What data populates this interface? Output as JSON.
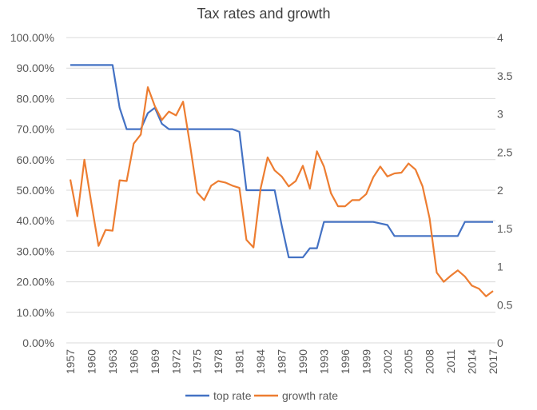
{
  "chart_data": {
    "type": "line",
    "title": "Tax rates and growth",
    "x": [
      1957,
      1958,
      1959,
      1960,
      1961,
      1962,
      1963,
      1964,
      1965,
      1966,
      1967,
      1968,
      1969,
      1970,
      1971,
      1972,
      1973,
      1974,
      1975,
      1976,
      1977,
      1978,
      1979,
      1980,
      1981,
      1982,
      1983,
      1984,
      1985,
      1986,
      1987,
      1988,
      1989,
      1990,
      1991,
      1992,
      1993,
      1994,
      1995,
      1996,
      1997,
      1998,
      1999,
      2000,
      2001,
      2002,
      2003,
      2004,
      2005,
      2006,
      2007,
      2008,
      2009,
      2010,
      2011,
      2012,
      2013,
      2014,
      2015,
      2016,
      2017
    ],
    "x_tick_labels": [
      "1957",
      "1960",
      "1963",
      "1966",
      "1969",
      "1972",
      "1975",
      "1978",
      "1981",
      "1984",
      "1987",
      "1990",
      "1993",
      "1996",
      "1999",
      "2002",
      "2005",
      "2008",
      "2011",
      "2014",
      "2017"
    ],
    "y_left": {
      "lim": [
        0,
        1
      ],
      "tick_labels": [
        "0.00%",
        "10.00%",
        "20.00%",
        "30.00%",
        "40.00%",
        "50.00%",
        "60.00%",
        "70.00%",
        "80.00%",
        "90.00%",
        "100.00%"
      ]
    },
    "y_right": {
      "lim": [
        0,
        4
      ],
      "tick_labels": [
        "0",
        "0.5",
        "1",
        "1.5",
        "2",
        "2.5",
        "3",
        "3.5",
        "4"
      ]
    },
    "grid": true,
    "legend": "bottom",
    "series": [
      {
        "name": "top rate",
        "axis": "left",
        "color": "#4472C4",
        "values": [
          0.91,
          0.91,
          0.91,
          0.91,
          0.91,
          0.91,
          0.91,
          0.77,
          0.7,
          0.7,
          0.7,
          0.7525,
          0.77,
          0.7175,
          0.7,
          0.7,
          0.7,
          0.7,
          0.7,
          0.7,
          0.7,
          0.7,
          0.7,
          0.7,
          0.6913,
          0.5,
          0.5,
          0.5,
          0.5,
          0.5,
          0.385,
          0.28,
          0.28,
          0.28,
          0.31,
          0.31,
          0.396,
          0.396,
          0.396,
          0.396,
          0.396,
          0.396,
          0.396,
          0.396,
          0.391,
          0.386,
          0.35,
          0.35,
          0.35,
          0.35,
          0.35,
          0.35,
          0.35,
          0.35,
          0.35,
          0.35,
          0.396,
          0.396,
          0.396,
          0.396,
          0.396
        ]
      },
      {
        "name": "growth rate",
        "axis": "right",
        "color": "#ED7D31",
        "values": [
          2.14,
          1.66,
          2.4,
          1.82,
          1.27,
          1.48,
          1.47,
          2.13,
          2.12,
          2.61,
          2.73,
          3.35,
          3.1,
          2.92,
          3.03,
          2.98,
          3.16,
          2.59,
          1.97,
          1.87,
          2.06,
          2.12,
          2.1,
          2.06,
          2.03,
          1.35,
          1.25,
          2.02,
          2.43,
          2.26,
          2.18,
          2.05,
          2.12,
          2.32,
          2.02,
          2.51,
          2.31,
          1.96,
          1.79,
          1.79,
          1.87,
          1.87,
          1.95,
          2.17,
          2.31,
          2.18,
          2.22,
          2.23,
          2.35,
          2.27,
          2.05,
          1.63,
          0.92,
          0.8,
          0.88,
          0.95,
          0.87,
          0.75,
          0.71,
          0.61,
          0.68
        ]
      }
    ]
  }
}
